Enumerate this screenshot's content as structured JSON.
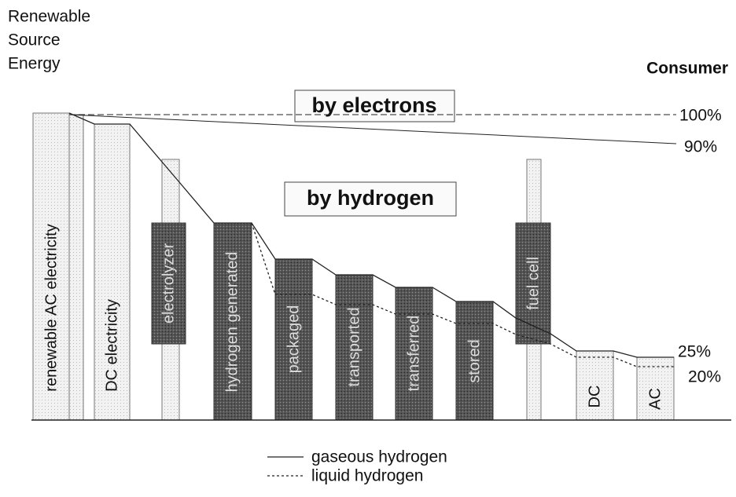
{
  "source_label": [
    "Renewable",
    "Source",
    "Energy"
  ],
  "consumer_label": "Consumer",
  "boxes": {
    "electrons": "by electrons",
    "hydrogen": "by hydrogen"
  },
  "levels": [
    "100%",
    "90%",
    "25%",
    "20%"
  ],
  "stages": [
    "renewable AC electricity",
    "DC electricity",
    "electrolyzer",
    "hydrogen generated",
    "packaged",
    "transported",
    "transferred",
    "stored",
    "fuel cell",
    "DC",
    "AC"
  ],
  "legend": [
    "gaseous hydrogen",
    "liquid hydrogen"
  ]
}
